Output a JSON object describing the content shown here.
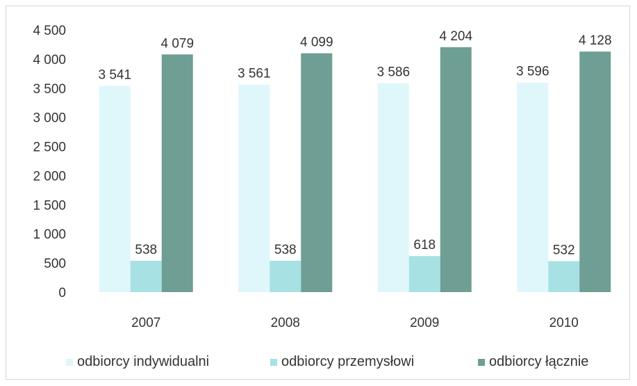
{
  "chart_data": {
    "type": "bar",
    "categories": [
      "2007",
      "2008",
      "2009",
      "2010"
    ],
    "series": [
      {
        "name": "odbiorcy indywidualni",
        "color": "#dff7fb",
        "values": [
          3541,
          3561,
          3586,
          3596
        ]
      },
      {
        "name": "odbiorcy przemysłowi",
        "color": "#a7e1e4",
        "values": [
          538,
          538,
          618,
          532
        ]
      },
      {
        "name": "odbiorcy łącznie",
        "color": "#6e9e94",
        "values": [
          4079,
          4099,
          4204,
          4128
        ]
      }
    ],
    "data_labels": [
      [
        "3 541",
        "3 561",
        "3 586",
        "3 596"
      ],
      [
        "538",
        "538",
        "618",
        "532"
      ],
      [
        "4 079",
        "4 099",
        "4 204",
        "4 128"
      ]
    ],
    "ylim": [
      0,
      4500
    ],
    "yticks": [
      0,
      500,
      1000,
      1500,
      2000,
      2500,
      3000,
      3500,
      4000,
      4500
    ],
    "ytick_labels": [
      "0",
      "500",
      "1 000",
      "1 500",
      "2 000",
      "2 500",
      "3 000",
      "3 500",
      "4 000",
      "4 500"
    ],
    "grid": false,
    "legend_position": "bottom",
    "xlabel": "",
    "ylabel": "",
    "title": ""
  }
}
